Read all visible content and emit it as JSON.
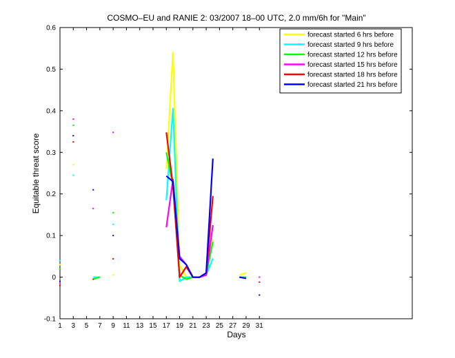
{
  "chart_data": {
    "type": "line",
    "title": "COSMO–EU and RANIE 2: 03/2007 18–00 UTC, 2.0 mm/6h for \"Main\"",
    "xlabel": "Days",
    "ylabel": "Equitable threat score",
    "xlim": [
      1,
      54
    ],
    "ylim": [
      -0.1,
      0.6
    ],
    "xticks": [
      1,
      3,
      5,
      7,
      9,
      11,
      13,
      15,
      17,
      19,
      21,
      23,
      25,
      27,
      29,
      31
    ],
    "yticks": [
      -0.1,
      0,
      0.1,
      0.2,
      0.3,
      0.4,
      0.5,
      0.6
    ],
    "ytick_labels": [
      "-0.1",
      "0",
      "0.1",
      "0.2",
      "0.3",
      "0.4",
      "0.5",
      "0.6"
    ],
    "legend_position": "top-right",
    "series": [
      {
        "name": "forecast started 6 hrs before",
        "color": "#ffff00",
        "points": [
          [
            1,
            0.03
          ],
          [
            3,
            0.27
          ],
          [
            9,
            0.005
          ],
          [
            17,
            0.26
          ],
          [
            18,
            0.54
          ],
          [
            19,
            0.03
          ],
          [
            20,
            0.0
          ],
          [
            21,
            0.0
          ],
          [
            22,
            0.0
          ],
          [
            23,
            0.01
          ],
          [
            24,
            0.09
          ],
          [
            28,
            0.005
          ],
          [
            29,
            0.01
          ]
        ]
      },
      {
        "name": "forecast started 9 hrs before",
        "color": "#00ffff",
        "points": [
          [
            1,
            0.04
          ],
          [
            3,
            0.245
          ],
          [
            6,
            0.0
          ],
          [
            7,
            0.0
          ],
          [
            9,
            0.127
          ],
          [
            17,
            0.185
          ],
          [
            18,
            0.405
          ],
          [
            19,
            -0.01
          ],
          [
            20,
            0.0
          ],
          [
            21,
            0.0
          ],
          [
            22,
            0.0
          ],
          [
            23,
            0.005
          ],
          [
            24,
            0.045
          ],
          [
            28,
            0.0
          ],
          [
            29,
            0.0
          ]
        ]
      },
      {
        "name": "forecast started 12 hrs before",
        "color": "#00ff00",
        "points": [
          [
            1,
            0.02
          ],
          [
            3,
            0.365
          ],
          [
            6,
            -0.005
          ],
          [
            7,
            0.0
          ],
          [
            9,
            0.155
          ],
          [
            17,
            0.3
          ],
          [
            18,
            0.22
          ],
          [
            19,
            0.005
          ],
          [
            20,
            -0.005
          ],
          [
            21,
            0.0
          ],
          [
            22,
            0.0
          ],
          [
            23,
            0.005
          ],
          [
            24,
            0.085
          ],
          [
            28,
            0.0
          ],
          [
            29,
            0.0
          ]
        ]
      },
      {
        "name": "forecast started 15 hrs before",
        "color": "#ff00ff",
        "points": [
          [
            1,
            -0.015
          ],
          [
            3,
            0.38
          ],
          [
            6,
            0.165
          ],
          [
            9,
            0.348
          ],
          [
            17,
            0.12
          ],
          [
            18,
            0.235
          ],
          [
            19,
            0.05
          ],
          [
            20,
            0.03
          ],
          [
            21,
            0.0
          ],
          [
            22,
            0.0
          ],
          [
            23,
            0.005
          ],
          [
            24,
            0.125
          ],
          [
            31,
            0.0
          ]
        ]
      },
      {
        "name": "forecast started 18 hrs before",
        "color": "#ff0000",
        "points": [
          [
            1,
            -0.02
          ],
          [
            3,
            0.325
          ],
          [
            6,
            -0.005
          ],
          [
            9,
            0.044
          ],
          [
            17,
            0.348
          ],
          [
            18,
            0.22
          ],
          [
            19,
            0.0
          ],
          [
            20,
            0.025
          ],
          [
            21,
            0.0
          ],
          [
            22,
            0.0
          ],
          [
            23,
            0.01
          ],
          [
            24,
            0.195
          ],
          [
            31,
            -0.012
          ]
        ]
      },
      {
        "name": "forecast started 21 hrs before",
        "color": "#0000ff",
        "points": [
          [
            1,
            -0.01
          ],
          [
            3,
            0.34
          ],
          [
            6,
            0.21
          ],
          [
            9,
            0.1
          ],
          [
            17,
            0.243
          ],
          [
            18,
            0.23
          ],
          [
            19,
            0.045
          ],
          [
            20,
            0.03
          ],
          [
            21,
            0.0
          ],
          [
            22,
            0.0
          ],
          [
            23,
            0.01
          ],
          [
            24,
            0.285
          ],
          [
            28,
            0.0
          ],
          [
            29,
            -0.003
          ],
          [
            31,
            -0.043
          ]
        ]
      }
    ]
  }
}
